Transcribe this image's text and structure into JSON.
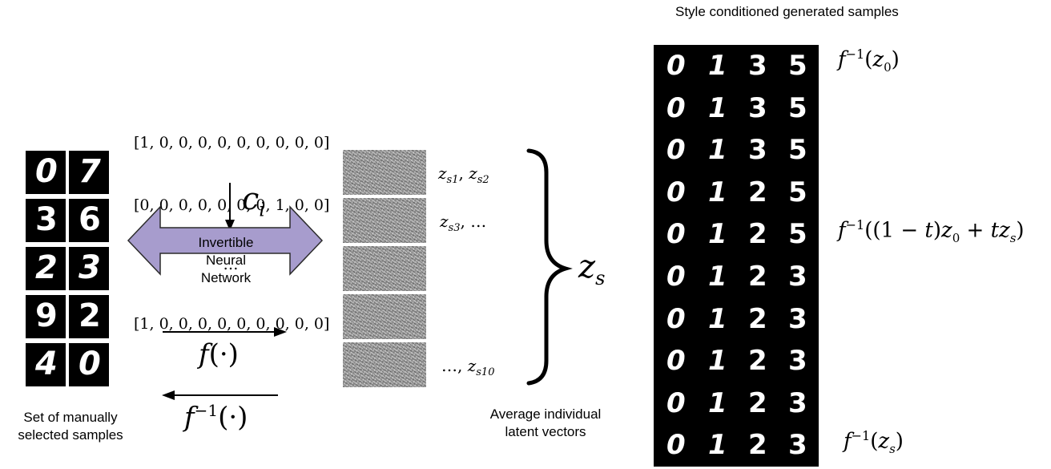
{
  "left_caption": [
    "Set of manually",
    "selected samples"
  ],
  "sample_grid": [
    [
      "0",
      "7"
    ],
    [
      "3",
      "6"
    ],
    [
      "2",
      "3"
    ],
    [
      "9",
      "2"
    ],
    [
      "4",
      "0"
    ]
  ],
  "one_hot": {
    "rows": [
      "[1, 0, 0, 0, 0, 0, 0, 0, 0, 0]",
      "[0, 0, 0, 0, 0, 0, 0, 1, 0, 0]",
      "…",
      "[1, 0, 0, 0, 0, 0, 0, 0, 0, 0]"
    ],
    "condition_symbol": "c",
    "condition_sub": "i"
  },
  "inn": {
    "label": [
      "Invertible",
      "Neural",
      "Network"
    ],
    "fill": "#a79ccd",
    "stroke": "#2b2b2b"
  },
  "forward": {
    "fn": "f",
    "arg": "(·)"
  },
  "inverse": {
    "fn": "f",
    "sup": "−1",
    "arg": "(·)"
  },
  "latent_labels": [
    "z_s1, z_s2",
    "z_s3, ...",
    "..., z_s10"
  ],
  "latent_caption": [
    "Average individual",
    "latent vectors"
  ],
  "zs_symbol": "z",
  "zs_sub": "s",
  "right_title": "Style conditioned generated samples",
  "generated_grid": [
    [
      "0",
      "1",
      "3",
      "5"
    ],
    [
      "0",
      "1",
      "3",
      "5"
    ],
    [
      "0",
      "1",
      "3",
      "5"
    ],
    [
      "0",
      "1",
      "2",
      "5"
    ],
    [
      "0",
      "1",
      "2",
      "5"
    ],
    [
      "0",
      "1",
      "2",
      "3"
    ],
    [
      "0",
      "1",
      "2",
      "3"
    ],
    [
      "0",
      "1",
      "2",
      "3"
    ],
    [
      "0",
      "1",
      "2",
      "3"
    ],
    [
      "0",
      "1",
      "2",
      "3"
    ]
  ],
  "right_labels": {
    "top": "f⁻¹(z₀)",
    "middle": "f⁻¹((1 − t)z₀ + tzₛ)",
    "bottom": "f⁻¹(zₛ)"
  }
}
